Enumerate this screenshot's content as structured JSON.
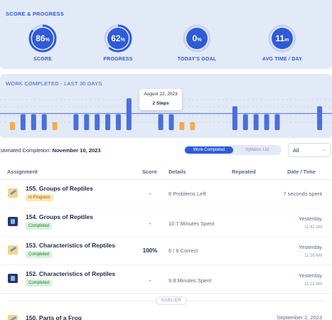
{
  "score_progress": {
    "title": "SCORE & PROGRESS",
    "stats": [
      {
        "value": "86",
        "unit": "%",
        "label": "SCORE",
        "fraction": 0.86,
        "color": "#2f5bd8"
      },
      {
        "value": "62",
        "unit": "%",
        "label": "PROGRESS",
        "fraction": 0.62,
        "color": "#2f5bd8"
      },
      {
        "value": "0",
        "unit": "%",
        "label": "TODAY'S GOAL",
        "fraction": 0.0,
        "color": "#2f5bd8"
      },
      {
        "value": "11",
        "unit": "m",
        "label": "AVG TIME / DAY",
        "fraction": 0.0,
        "color": "#2f5bd8"
      }
    ]
  },
  "work_completed": {
    "title": "WORK COMPLETED - LAST 30 DAYS",
    "tooltip_date": "August 22, 2023",
    "tooltip_steps": "2 Steps"
  },
  "chart_data": {
    "type": "bar",
    "title": "WORK COMPLETED - LAST 30 DAYS",
    "series_colors": {
      "completed": "#4a6fdc",
      "in_progress": "#f0ad4e"
    },
    "goal_line": 2,
    "values": [
      1,
      2,
      2,
      2,
      1,
      0,
      2,
      2,
      2,
      2,
      2,
      4,
      0,
      0,
      2,
      2,
      1,
      1,
      0,
      0,
      0,
      3,
      2,
      2,
      2,
      2,
      0,
      0,
      0,
      3
    ],
    "kinds": [
      "p",
      "c",
      "c",
      "c",
      "p",
      "-",
      "c",
      "c",
      "c",
      "c",
      "c",
      "c",
      "-",
      "-",
      "c",
      "c",
      "p",
      "p",
      "-",
      "-",
      "-",
      "c",
      "c",
      "c",
      "c",
      "c",
      "-",
      "-",
      "-",
      "c"
    ],
    "ylim": [
      0,
      5
    ]
  },
  "completion": {
    "label": "Estimated Completion:",
    "date": "November 10, 2023",
    "toggle_on": "Work Completed",
    "toggle_off": "Syllabus List",
    "filter": "All"
  },
  "table": {
    "headers": {
      "assignment": "Assignment",
      "score": "Score",
      "details": "Details",
      "repeated": "Repeated",
      "datetime": "Date / Time"
    },
    "rows": [
      {
        "title": "155. Groups of Reptiles",
        "status": "In Progress",
        "score": "-",
        "details": "6 Problems Left",
        "date": "7 seconds spent",
        "time": "",
        "icon": "pencil"
      },
      {
        "title": "154. Groups of Reptiles",
        "status": "Completed",
        "score": "-",
        "details": "10.7 Minutes Spent",
        "date": "Yesterday",
        "time": "11:42 AM",
        "icon": "video"
      },
      {
        "title": "153. Characteristics of Reptiles",
        "status": "Completed",
        "score": "100%",
        "details": "6 / 6 Correct",
        "date": "Yesterday",
        "time": "11:26 AM",
        "icon": "pencil"
      },
      {
        "title": "152. Characteristics of Reptiles",
        "status": "Completed",
        "score": "-",
        "details": "9.8 Minutes Spent",
        "date": "Yesterday",
        "time": "11:21 AM",
        "icon": "video"
      }
    ],
    "earlier_label": "EARLIER",
    "partial_row": {
      "title": "150. Parts of a Frog",
      "date": "September 1, 2023"
    }
  }
}
